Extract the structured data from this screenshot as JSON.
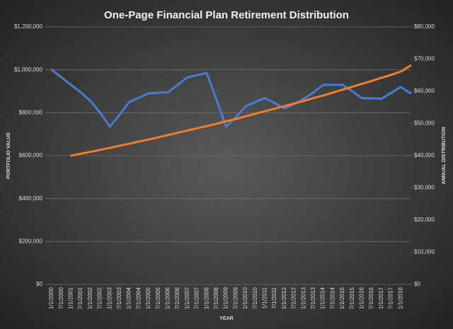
{
  "chart_data": {
    "type": "line",
    "title": "One-Page Financial Plan Retirement Distribution",
    "x_label": "YEAR",
    "y_label": "PORTFOLIO VALUE",
    "y2_label": "ANNUAL DISTRIBUTION",
    "categories": [
      "1/1/2000",
      "7/1/2000",
      "1/1/2001",
      "7/1/2001",
      "1/1/2002",
      "7/1/2002",
      "1/1/2003",
      "7/1/2003",
      "1/1/2004",
      "7/1/2004",
      "1/1/2005",
      "7/1/2005",
      "1/1/2006",
      "7/1/2006",
      "1/1/2007",
      "7/1/2007",
      "1/1/2008",
      "7/1/2008",
      "1/1/2009",
      "7/1/2009",
      "1/1/2010",
      "7/1/2010",
      "1/1/2011",
      "7/1/2011",
      "1/1/2012",
      "7/1/2012",
      "1/1/2013",
      "7/1/2013",
      "1/1/2014",
      "7/1/2014",
      "1/1/2015",
      "7/1/2015",
      "1/1/2016",
      "7/1/2016",
      "1/1/2017",
      "7/1/2017",
      "1/1/2018",
      null
    ],
    "series": [
      {
        "color": "#4a7bd0",
        "values": [
          1000000,
          965000,
          930000,
          895000,
          855000,
          800000,
          735000,
          790000,
          850000,
          870000,
          890000,
          893000,
          895000,
          930000,
          965000,
          975000,
          985000,
          860000,
          735000,
          780000,
          830000,
          850000,
          868000,
          845000,
          820000,
          840000,
          865000,
          895000,
          930000,
          930000,
          930000,
          900000,
          868000,
          867000,
          865000,
          892000,
          920000,
          890000
        ]
      },
      {
        "color": "#ed7d31",
        "axis": "y2",
        "values": [
          null,
          null,
          40000,
          40600,
          41200,
          41800,
          42400,
          43100,
          43700,
          44400,
          45000,
          45700,
          46400,
          47100,
          47800,
          48500,
          49200,
          49900,
          50700,
          51400,
          52200,
          53000,
          53800,
          54600,
          55400,
          56200,
          57000,
          57900,
          58700,
          59600,
          60500,
          61400,
          62300,
          63200,
          64200,
          65100,
          66100,
          68000
        ]
      }
    ],
    "ylim": [
      0,
      1200000
    ],
    "yticks": [
      {
        "value": 0,
        "label": "$0"
      },
      {
        "value": 200000,
        "label": "$200,000"
      },
      {
        "value": 400000,
        "label": "$400,000"
      },
      {
        "value": 600000,
        "label": "$600,000"
      },
      {
        "value": 800000,
        "label": "$800,000"
      },
      {
        "value": 1000000,
        "label": "$1,000,000"
      },
      {
        "value": 1200000,
        "label": "$1,200,000"
      }
    ],
    "y2lim": [
      0,
      80000
    ],
    "y2ticks": [
      {
        "value": 0,
        "label": "$0"
      },
      {
        "value": 10000,
        "label": "$10,000"
      },
      {
        "value": 20000,
        "label": "$20,000"
      },
      {
        "value": 30000,
        "label": "$30,000"
      },
      {
        "value": 40000,
        "label": "$40,000"
      },
      {
        "value": 50000,
        "label": "$50,000"
      },
      {
        "value": 60000,
        "label": "$60,000"
      },
      {
        "value": 70000,
        "label": "$70,000"
      },
      {
        "value": 80000,
        "label": "$80,000"
      }
    ],
    "grid": true
  }
}
